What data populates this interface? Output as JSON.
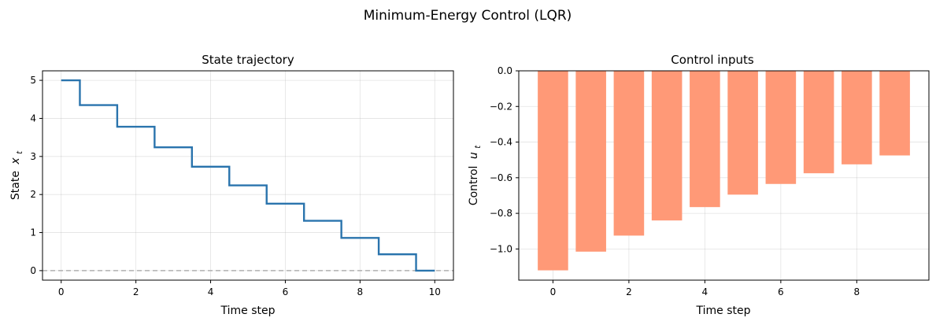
{
  "figure": {
    "title": "Minimum-Energy Control (LQR)"
  },
  "chart_data": [
    {
      "type": "line",
      "style": "step",
      "title": "State trajectory",
      "xlabel": "Time step",
      "ylabel": "State",
      "ylabel_var": "x",
      "ylabel_sub": "t",
      "xlim": [
        -0.5,
        10.5
      ],
      "ylim": [
        -0.25,
        5.25
      ],
      "xticks": [
        0,
        2,
        4,
        6,
        8,
        10
      ],
      "yticks": [
        0,
        1,
        2,
        3,
        4,
        5
      ],
      "grid": true,
      "x": [
        0,
        1,
        2,
        3,
        4,
        5,
        6,
        7,
        8,
        9,
        10
      ],
      "series": [
        {
          "values": [
            5.0,
            4.35,
            3.78,
            3.24,
            2.73,
            2.24,
            1.76,
            1.31,
            0.86,
            0.43,
            0.0
          ],
          "color": "#2a74ad"
        }
      ],
      "reference_line": {
        "y": 0,
        "color": "#b0b0b0",
        "style": "dashed"
      }
    },
    {
      "type": "bar",
      "title": "Control inputs",
      "xlabel": "Time step",
      "ylabel": "Control",
      "ylabel_var": "u",
      "ylabel_sub": "t",
      "xlim": [
        -0.9,
        9.9
      ],
      "ylim": [
        -1.175,
        0.0
      ],
      "xticks": [
        0,
        2,
        4,
        6,
        8
      ],
      "yticks": [
        0.0,
        -0.2,
        -0.4,
        -0.6,
        -0.8,
        -1.0
      ],
      "ytick_labels": [
        "0.0",
        "−0.2",
        "−0.4",
        "−0.6",
        "−0.8",
        "−1.0"
      ],
      "grid": true,
      "categories": [
        0,
        1,
        2,
        3,
        4,
        5,
        6,
        7,
        8,
        9
      ],
      "series": [
        {
          "values": [
            -1.12,
            -1.015,
            -0.925,
            -0.84,
            -0.765,
            -0.695,
            -0.635,
            -0.575,
            -0.525,
            -0.475
          ],
          "color": "#ff9977"
        }
      ]
    }
  ]
}
